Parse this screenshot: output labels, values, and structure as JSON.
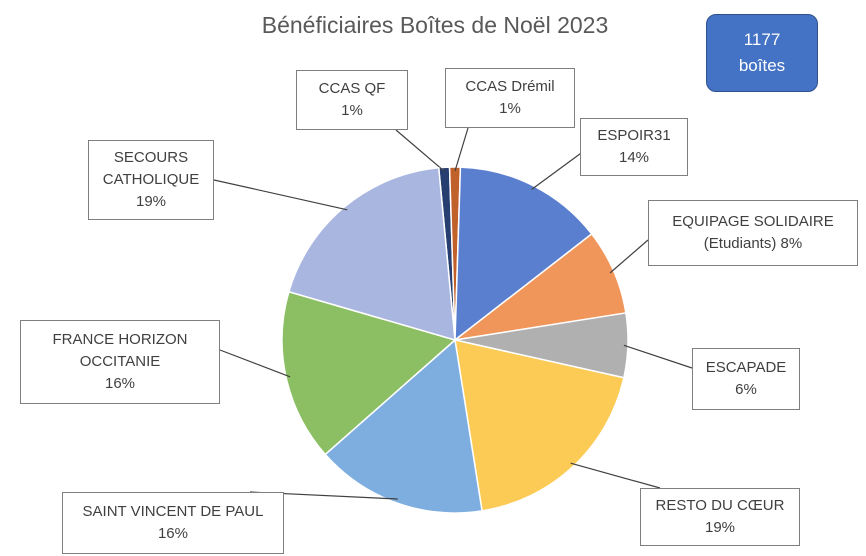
{
  "chart_data": {
    "type": "pie",
    "title": "Bénéficiaires Boîtes de Noël 2023",
    "annotation": "1177 boîtes",
    "categories": [
      "CCAS QF",
      "CCAS Drémil",
      "ESPOIR31",
      "EQUIPAGE SOLIDAIRE (Etudiants)",
      "ESCAPADE",
      "RESTO DU CŒUR",
      "SAINT VINCENT DE PAUL",
      "FRANCE HORIZON OCCITANIE",
      "SECOURS CATHOLIQUE"
    ],
    "values": [
      1,
      1,
      14,
      8,
      6,
      19,
      16,
      16,
      19
    ],
    "value_labels": [
      "1%",
      "1%",
      "14%",
      "8%",
      "6%",
      "19%",
      "16%",
      "16%",
      "19%"
    ],
    "colors": [
      "#263e70",
      "#c0602a",
      "#5b7fcf",
      "#f0965a",
      "#b0b0b0",
      "#fccb55",
      "#7eaee0",
      "#8cbf64",
      "#a9b6e0"
    ]
  }
}
